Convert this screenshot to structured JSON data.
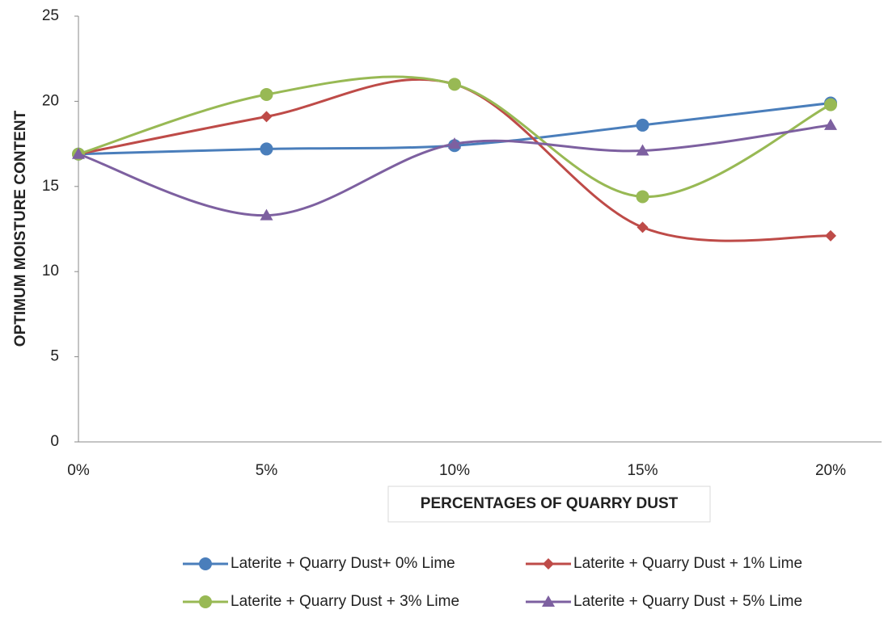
{
  "chart_data": {
    "type": "line",
    "x_label": "PERCENTAGES OF QUARRY DUST",
    "y_label": "OPTIMUM MOISTURE CONTENT",
    "categories": [
      "0%",
      "5%",
      "10%",
      "15%",
      "20%"
    ],
    "ylim": [
      0,
      25
    ],
    "yticks": [
      0,
      5,
      10,
      15,
      20,
      25
    ],
    "smooth": true,
    "series": [
      {
        "name": "Laterite + Quarry Dust+ 0% Lime",
        "color": "#4a7ebb",
        "marker": "circle",
        "values": [
          16.9,
          17.2,
          17.4,
          18.6,
          19.9
        ]
      },
      {
        "name": "Laterite + Quarry Dust + 1% Lime",
        "color": "#be4b48",
        "marker": "diamond",
        "values": [
          16.9,
          19.1,
          21.0,
          12.6,
          12.1
        ]
      },
      {
        "name": "Laterite + Quarry Dust + 3% Lime",
        "color": "#98b954",
        "marker": "circle",
        "values": [
          16.9,
          20.4,
          21.0,
          14.4,
          19.8
        ]
      },
      {
        "name": "Laterite + Quarry Dust + 5% Lime",
        "color": "#7d60a0",
        "marker": "triangle",
        "values": [
          16.9,
          13.3,
          17.5,
          17.1,
          18.6
        ]
      }
    ]
  }
}
